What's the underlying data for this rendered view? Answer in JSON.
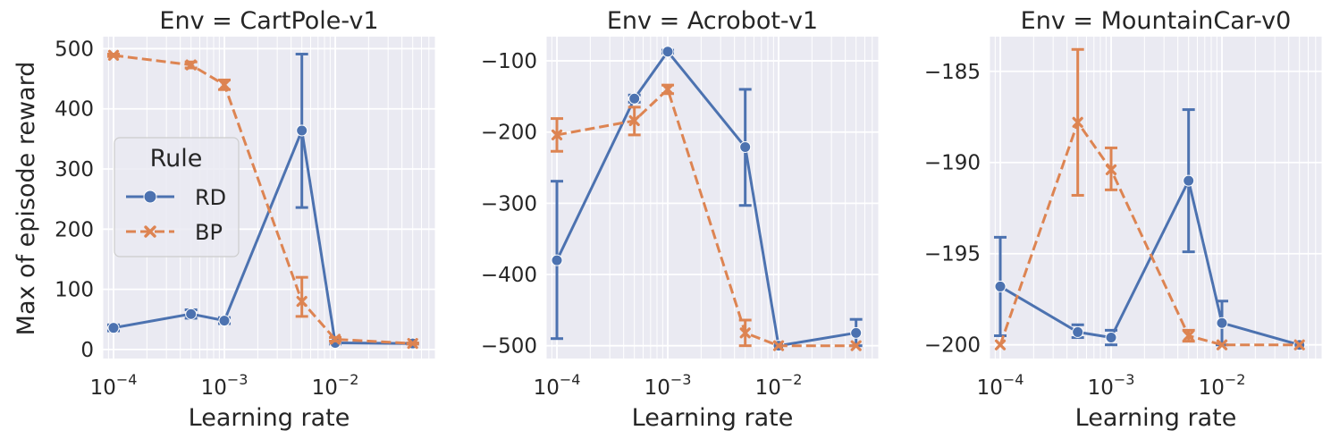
{
  "figure": {
    "ylabel": "Max of episode reward",
    "xlabel": "Learning rate",
    "legend": {
      "title": "Rule",
      "placement": "center-left of first panel",
      "entries": [
        {
          "name": "RD",
          "color": "#4c72b0",
          "style": "solid",
          "marker": "circle"
        },
        {
          "name": "BP",
          "color": "#dd8452",
          "style": "dashed",
          "marker": "x"
        }
      ]
    },
    "x_tick_labels": [
      {
        "base": "10",
        "exp": "−4"
      },
      {
        "base": "10",
        "exp": "−3"
      },
      {
        "base": "10",
        "exp": "−2"
      }
    ],
    "background": "#eaeaf2",
    "grid": true
  },
  "chart_data": [
    {
      "type": "line",
      "title": "Env = CartPole-v1",
      "xscale": "log",
      "xlim": [
        8e-05,
        0.08
      ],
      "ylim": [
        -15,
        520
      ],
      "yticks": [
        0,
        100,
        200,
        300,
        400,
        500
      ],
      "ytick_labels": [
        "0",
        "100",
        "200",
        "300",
        "400",
        "500"
      ],
      "series": [
        {
          "name": "RD",
          "x": [
            0.0001,
            0.0005,
            0.001,
            0.005,
            0.01,
            0.05
          ],
          "y": [
            36,
            59,
            48,
            364,
            11,
            10
          ],
          "err_low": [
            31,
            52,
            43,
            236,
            9,
            9
          ],
          "err_high": [
            41,
            66,
            53,
            491,
            13,
            11
          ]
        },
        {
          "name": "BP",
          "x": [
            0.0001,
            0.0005,
            0.001,
            0.005,
            0.01,
            0.05
          ],
          "y": [
            489,
            473,
            440,
            80,
            17,
            10
          ],
          "err_low": [
            487,
            468,
            432,
            55,
            14,
            9
          ],
          "err_high": [
            491,
            478,
            448,
            120,
            20,
            11
          ]
        }
      ]
    },
    {
      "type": "line",
      "title": "Env = Acrobot-v1",
      "xscale": "log",
      "xlim": [
        8e-05,
        0.08
      ],
      "ylim": [
        -518,
        -66
      ],
      "yticks": [
        -500,
        -400,
        -300,
        -200,
        -100
      ],
      "ytick_labels": [
        "−500",
        "−400",
        "−300",
        "−200",
        "−100"
      ],
      "series": [
        {
          "name": "RD",
          "x": [
            0.0001,
            0.0005,
            0.001,
            0.005,
            0.01,
            0.05
          ],
          "y": [
            -380,
            -153,
            -87,
            -221,
            -500,
            -482
          ],
          "err_low": [
            -490,
            -158,
            -89,
            -303,
            -500,
            -500
          ],
          "err_high": [
            -269,
            -148,
            -85,
            -140,
            -500,
            -463
          ]
        },
        {
          "name": "BP",
          "x": [
            0.0001,
            0.0005,
            0.001,
            0.005,
            0.01,
            0.05
          ],
          "y": [
            -204,
            -184,
            -140,
            -482,
            -500,
            -500
          ],
          "err_low": [
            -227,
            -204,
            -146,
            -500,
            -500,
            -500
          ],
          "err_high": [
            -181,
            -165,
            -134,
            -464,
            -500,
            -500
          ]
        }
      ]
    },
    {
      "type": "line",
      "title": "Env = MountainCar-v0",
      "xscale": "log",
      "xlim": [
        8e-05,
        0.08
      ],
      "ylim": [
        -200.75,
        -183.1
      ],
      "yticks": [
        -200,
        -195,
        -190,
        -185
      ],
      "ytick_labels": [
        "−200",
        "−195",
        "−190",
        "−185"
      ],
      "series": [
        {
          "name": "RD",
          "x": [
            0.0001,
            0.0005,
            0.001,
            0.005,
            0.01,
            0.05
          ],
          "y": [
            -196.8,
            -199.3,
            -199.6,
            -191.0,
            -198.8,
            -200
          ],
          "err_low": [
            -199.5,
            -199.6,
            -200.0,
            -194.9,
            -200.0,
            -200
          ],
          "err_high": [
            -194.1,
            -198.9,
            -199.2,
            -187.1,
            -197.6,
            -200
          ]
        },
        {
          "name": "BP",
          "x": [
            0.0001,
            0.0005,
            0.001,
            0.005,
            0.01,
            0.05
          ],
          "y": [
            -200,
            -187.8,
            -190.4,
            -199.5,
            -200,
            -200
          ],
          "err_low": [
            -200,
            -191.8,
            -191.5,
            -199.8,
            -200,
            -200
          ],
          "err_high": [
            -200,
            -183.8,
            -189.2,
            -199.2,
            -200,
            -200
          ]
        }
      ]
    }
  ]
}
